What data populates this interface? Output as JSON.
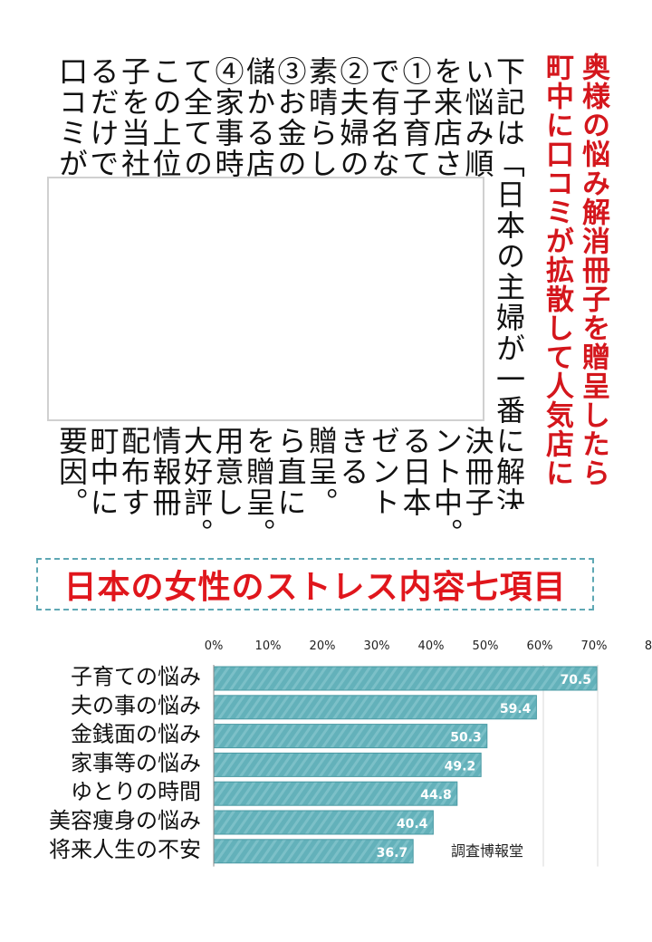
{
  "title_col1": "奥様の悩み解消冊子を贈呈したら",
  "title_col2": "町中に口コミが拡散して人気店に",
  "body_columns": [
    "下記は「日本の主婦が一番に解決した",
    "い悩み順位",
    "を来店され",
    "①子育て悩",
    "で有名な",
    "②夫婦の性",
    "素晴らし",
    "③お金の悩",
    "儲かる店",
    "④家事時間",
    "て全ての",
    "この上位四",
    "子を当社か",
    "るだけで評",
    "口コミが牛"
  ],
  "body_tails": [
    "",
    "決冊子",
    "ント中。",
    "る日本",
    "ゼント",
    "きる",
    "贈呈。",
    "ら直に",
    "を贈呈。",
    "用意し",
    "大好評。",
    "情報冊",
    "配布す",
    "町中に",
    "要因。"
  ],
  "chart_heading": "日本の女性のストレス内容七項目",
  "chart_data": {
    "type": "bar",
    "orientation": "horizontal",
    "categories": [
      "子育ての悩み",
      "夫の事の悩み",
      "金銭面の悩み",
      "家事等の悩み",
      "ゆとりの時間",
      "美容痩身の悩み",
      "将来人生の不安"
    ],
    "values": [
      70.5,
      59.4,
      50.3,
      49.2,
      44.8,
      40.4,
      36.7
    ],
    "value_labels": [
      "70.5",
      "59.4",
      "50.3",
      "49.2",
      "44.8",
      "40.4",
      "36.7"
    ],
    "x_ticks": [
      "0%",
      "10%",
      "20%",
      "30%",
      "40%",
      "50%",
      "60%",
      "70%",
      "8"
    ],
    "xlim": [
      0,
      80
    ],
    "bar_color": "#63b1ba",
    "source": "調査博報堂"
  }
}
